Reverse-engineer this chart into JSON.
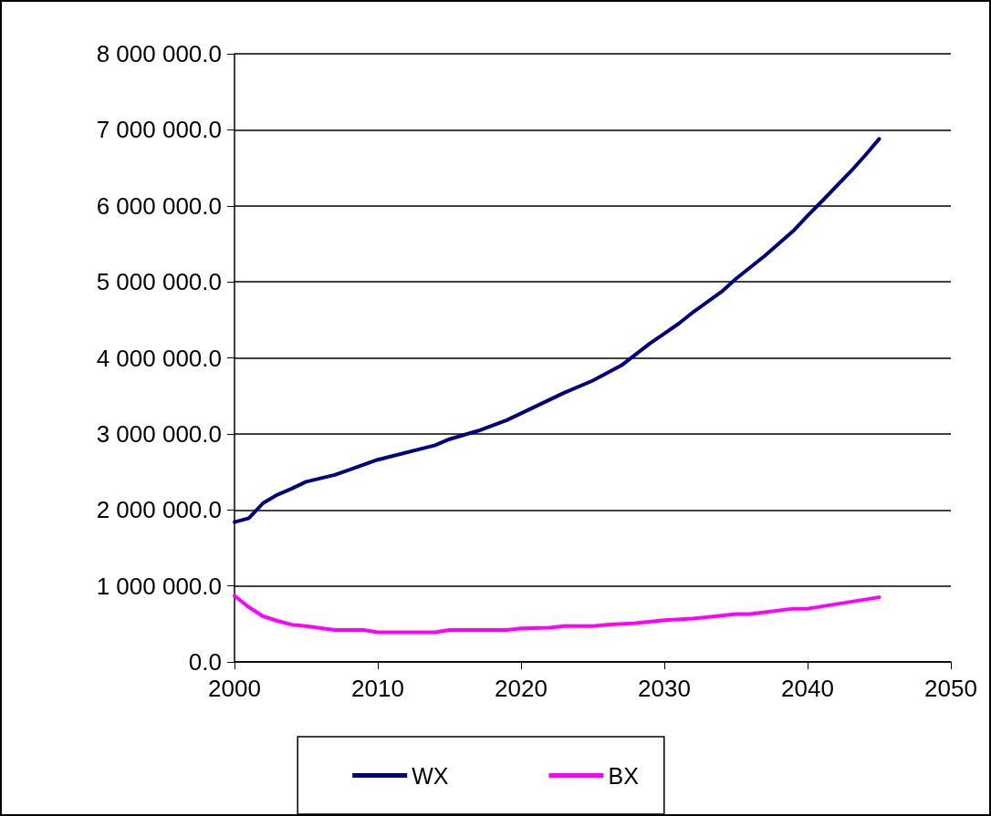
{
  "chart_data": {
    "type": "line",
    "legend": "bottom",
    "grid": "y",
    "marker": "none",
    "line_style": "solid",
    "xlim": [
      2000,
      2050
    ],
    "xticks": [
      2000,
      2010,
      2020,
      2030,
      2040,
      2050
    ],
    "ylim": [
      0,
      8000000
    ],
    "yticks": [
      {
        "value": 0,
        "label": "0.0"
      },
      {
        "value": 1000000,
        "label": "1 000 000.0"
      },
      {
        "value": 2000000,
        "label": "2 000 000.0"
      },
      {
        "value": 3000000,
        "label": "3 000 000.0"
      },
      {
        "value": 4000000,
        "label": "4 000 000.0"
      },
      {
        "value": 5000000,
        "label": "5 000 000.0"
      },
      {
        "value": 6000000,
        "label": "6 000 000.0"
      },
      {
        "value": 7000000,
        "label": "7 000 000.0"
      },
      {
        "value": 8000000,
        "label": "8 000 000.0"
      }
    ],
    "series": [
      {
        "name": "WX",
        "color": "#000080",
        "x": [
          2000,
          2001,
          2002,
          2003,
          2004,
          2005,
          2007,
          2010,
          2014,
          2015,
          2017,
          2019,
          2020,
          2023,
          2025,
          2027,
          2029,
          2030,
          2031,
          2032,
          2034,
          2035,
          2037,
          2039,
          2040,
          2041,
          2043,
          2044,
          2045
        ],
        "values": [
          1840000,
          1890000,
          2090000,
          2200000,
          2280000,
          2370000,
          2460000,
          2660000,
          2850000,
          2930000,
          3040000,
          3180000,
          3270000,
          3540000,
          3700000,
          3900000,
          4190000,
          4320000,
          4450000,
          4600000,
          4870000,
          5040000,
          5340000,
          5670000,
          5870000,
          6060000,
          6450000,
          6660000,
          6880000
        ]
      },
      {
        "name": "BX",
        "color": "#ff00ff",
        "x": [
          2000,
          2001,
          2002,
          2003,
          2004,
          2005,
          2007,
          2009,
          2010,
          2014,
          2015,
          2019,
          2020,
          2022,
          2023,
          2025,
          2026,
          2028,
          2030,
          2032,
          2034,
          2035,
          2036,
          2039,
          2040,
          2043,
          2045
        ],
        "values": [
          870000,
          720000,
          600000,
          540000,
          490000,
          470000,
          420000,
          420000,
          390000,
          390000,
          420000,
          420000,
          440000,
          450000,
          470000,
          470000,
          490000,
          510000,
          550000,
          570000,
          610000,
          630000,
          630000,
          700000,
          700000,
          790000,
          850000
        ]
      }
    ]
  }
}
